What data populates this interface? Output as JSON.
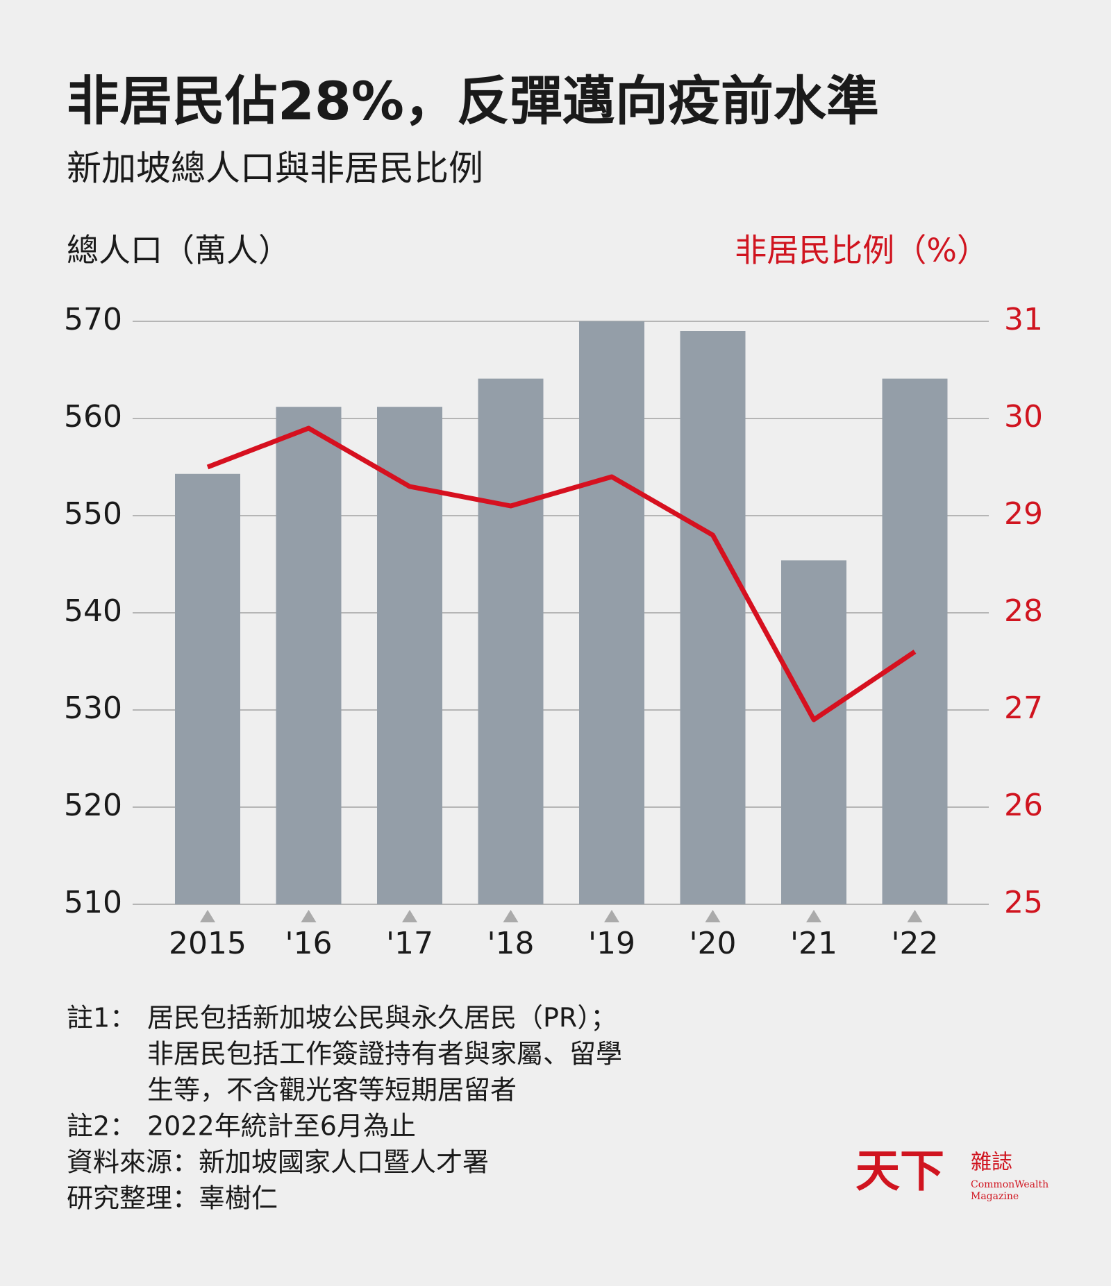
{
  "chart_data": {
    "type": "bar-line",
    "title": "非居民佔28%，反彈邁向疫前水準",
    "subtitle": "新加坡總人口與非居民比例",
    "y_label": "總人口（萬人）",
    "y2_label": "非居民比例（%）",
    "categories": [
      "2015",
      "'16",
      "'17",
      "'18",
      "'19",
      "'20",
      "'21",
      "'22"
    ],
    "series": [
      {
        "name": "總人口",
        "type": "bar",
        "color": "#949ea8",
        "values": [
          554.3,
          561.2,
          561.2,
          564.1,
          570.0,
          569.0,
          545.4,
          564.1
        ]
      },
      {
        "name": "非居民比例",
        "type": "line",
        "axis": "y2",
        "color": "#d6101f",
        "values": [
          29.5,
          29.9,
          29.3,
          29.1,
          29.4,
          28.8,
          26.9,
          27.6
        ]
      }
    ],
    "ylim": [
      510,
      570
    ],
    "yticks": [
      510,
      520,
      530,
      540,
      550,
      560,
      570
    ],
    "y2lim": [
      25,
      31
    ],
    "y2ticks": [
      25,
      26,
      27,
      28,
      29,
      30,
      31
    ],
    "grid": true,
    "notes": [
      {
        "label": "註1：",
        "lines": [
          "居民包括新加坡公民與永久居民（PR）；",
          "非居民包括工作簽證持有者與家屬、留學",
          "生等，不含觀光客等短期居留者"
        ]
      },
      {
        "label": "註2：",
        "lines": [
          "2022年統計至6月為止"
        ]
      },
      {
        "label": "資料來源：",
        "lines": [
          "新加坡國家人口暨人才署"
        ]
      },
      {
        "label": "研究整理：",
        "lines": [
          "辜樹仁"
        ]
      }
    ],
    "logo": {
      "main": "天下",
      "side": "雜誌",
      "en1": "CommonWealth",
      "en2": "Magazine"
    }
  }
}
